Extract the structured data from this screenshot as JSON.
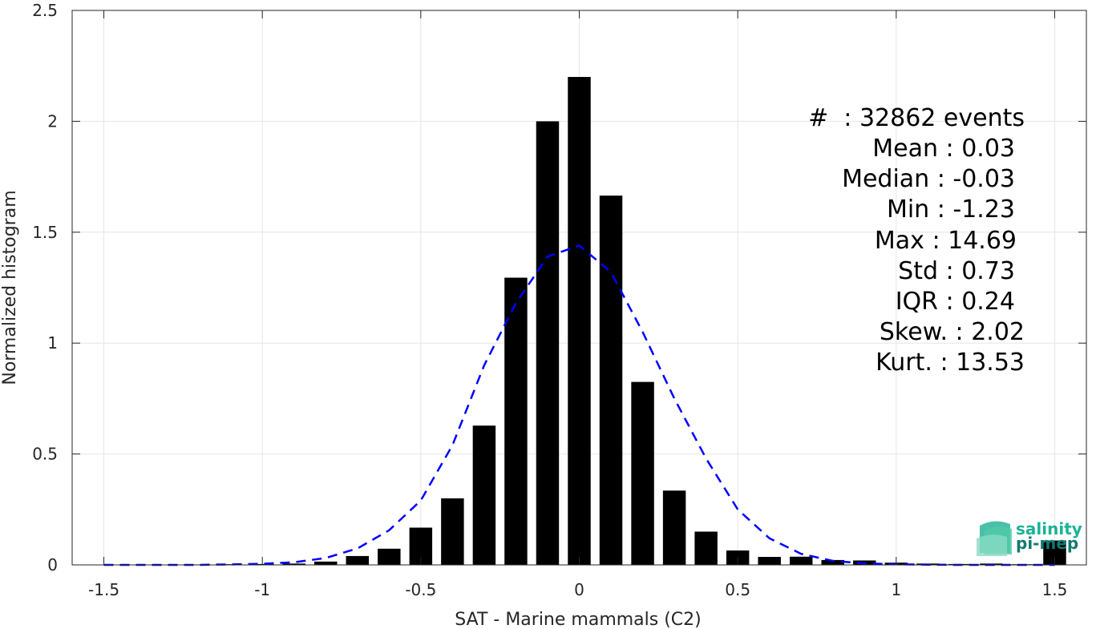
{
  "chart_data": {
    "type": "bar",
    "xlabel": "SAT - Marine mammals (C2)",
    "ylabel": "Normalized histogram",
    "xlim": [
      -1.6,
      1.6
    ],
    "ylim": [
      0,
      2.5
    ],
    "xticks": [
      -1.5,
      -1,
      -0.5,
      0,
      0.5,
      1,
      1.5
    ],
    "xtick_labels": [
      "-1.5",
      "-1",
      "-0.5",
      "0",
      "0.5",
      "1",
      "1.5"
    ],
    "yticks": [
      0,
      0.5,
      1,
      1.5,
      2,
      2.5
    ],
    "ytick_labels": [
      "0",
      "0.5",
      "1",
      "1.5",
      "2",
      "2.5"
    ],
    "grid": true,
    "bar_color": "#000000",
    "fit_color": "#0000ff",
    "bars": {
      "x": [
        -1.5,
        -1.4,
        -1.3,
        -1.2,
        -1.1,
        -1.0,
        -0.9,
        -0.8,
        -0.7,
        -0.6,
        -0.5,
        -0.4,
        -0.3,
        -0.2,
        -0.1,
        0.0,
        0.1,
        0.2,
        0.3,
        0.4,
        0.5,
        0.6,
        0.7,
        0.8,
        0.9,
        1.0,
        1.1,
        1.2,
        1.3,
        1.4,
        1.5
      ],
      "values": [
        0.0,
        0.0,
        0.0,
        0.002,
        0.003,
        0.004,
        0.006,
        0.015,
        0.04,
        0.073,
        0.168,
        0.3,
        0.628,
        1.295,
        2.0,
        2.2,
        1.665,
        0.825,
        0.335,
        0.15,
        0.065,
        0.036,
        0.037,
        0.022,
        0.02,
        0.01,
        0.006,
        0.004,
        0.006,
        0.003,
        0.11
      ]
    },
    "fit": {
      "x": [
        -1.5,
        -1.4,
        -1.3,
        -1.2,
        -1.1,
        -1.0,
        -0.9,
        -0.8,
        -0.7,
        -0.6,
        -0.5,
        -0.4,
        -0.3,
        -0.2,
        -0.1,
        0.0,
        0.1,
        0.2,
        0.3,
        0.4,
        0.5,
        0.6,
        0.7,
        0.8,
        0.9,
        1.0,
        1.1,
        1.2,
        1.3,
        1.4,
        1.5
      ],
      "y": [
        0.0,
        0.0,
        0.0,
        0.0,
        0.002,
        0.005,
        0.012,
        0.031,
        0.074,
        0.156,
        0.29,
        0.54,
        0.9,
        1.18,
        1.39,
        1.44,
        1.32,
        1.05,
        0.75,
        0.48,
        0.25,
        0.12,
        0.05,
        0.018,
        0.007,
        0.003,
        0.001,
        0.0,
        0.0,
        0.0,
        0.0
      ]
    }
  },
  "stats": [
    "#  : 32862 events",
    "Mean : 0.03",
    "Median : -0.03",
    "Min : -1.23",
    "Max : 14.69",
    "Std : 0.73",
    "IQR : 0.24",
    "Skew. : 2.02",
    "Kurt. : 13.53"
  ],
  "logo": {
    "line1": "salinity",
    "line2": "pi-mep",
    "color1": "#1ab394",
    "color2": "#137a70"
  }
}
